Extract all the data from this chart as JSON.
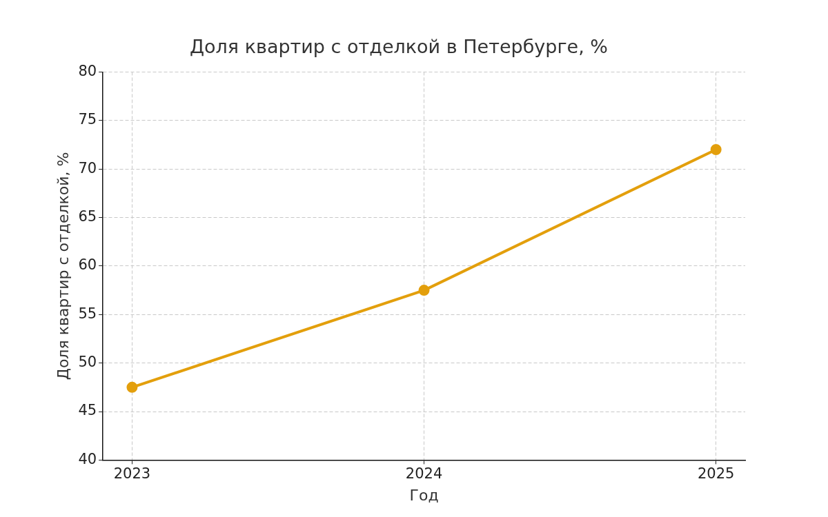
{
  "chart_data": {
    "type": "line",
    "title": "Доля квартир с отделкой в Петербурге, %",
    "xlabel": "Год",
    "ylabel": "Доля квартир с отделкой, %",
    "x": [
      2023,
      2024,
      2025
    ],
    "series": [
      {
        "color": "#e39f0c",
        "values": [
          47.5,
          57.5,
          72
        ]
      }
    ],
    "xlim": [
      2022.9,
      2025.1
    ],
    "xticks": [
      2023,
      2024,
      2025
    ],
    "ylim": [
      40,
      80
    ],
    "yticks": [
      40,
      45,
      50,
      55,
      60,
      65,
      70,
      75,
      80
    ],
    "grid": true,
    "legend": false,
    "marker": "circle",
    "line_style": "solid"
  }
}
